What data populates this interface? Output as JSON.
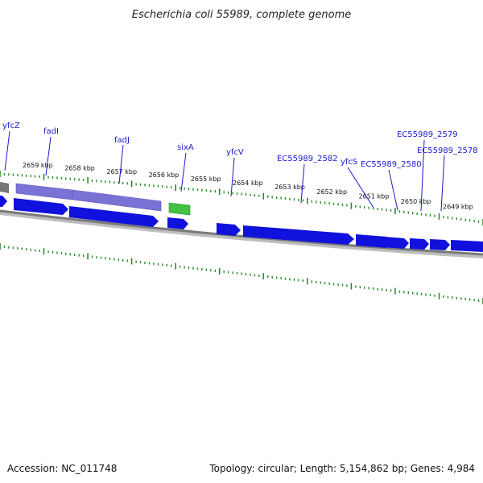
{
  "title": "Escherichia coli 55989, complete genome",
  "footer": {
    "accession": "Accession: NC_011748",
    "summary": "Topology: circular; Length: 5,154,862 bp; Genes: 4,984"
  },
  "colors": {
    "label": "#1a1acc",
    "leader": "#1a1acc",
    "tick": "#2a8a2a",
    "backbone": "#888888",
    "gene_forward_blue": "#1111dd",
    "gene_fad": "#7b72d6",
    "gene_sixA": "#44c044",
    "gene_grey": "#777777"
  },
  "scale": {
    "unit": "kbp",
    "labels": [
      {
        "pos": 2659,
        "text": "2659 kbp"
      },
      {
        "pos": 2658,
        "text": "2658 kbp"
      },
      {
        "pos": 2657,
        "text": "2657 kbp"
      },
      {
        "pos": 2656,
        "text": "2656 kbp"
      },
      {
        "pos": 2655,
        "text": "2655 kbp"
      },
      {
        "pos": 2654,
        "text": "2654 kbp"
      },
      {
        "pos": 2653,
        "text": "2653 kbp"
      },
      {
        "pos": 2652,
        "text": "2652 kbp"
      },
      {
        "pos": 2651,
        "text": "2651 kbp"
      },
      {
        "pos": 2650,
        "text": "2650 kbp"
      },
      {
        "pos": 2649,
        "text": "2649 kbp"
      }
    ]
  },
  "gene_labels": [
    {
      "text": "yfcZ"
    },
    {
      "text": "fadI"
    },
    {
      "text": "fadJ"
    },
    {
      "text": "sixA"
    },
    {
      "text": "yfcV"
    },
    {
      "text": "EC55989_2582"
    },
    {
      "text": "yfcS"
    },
    {
      "text": "EC55989_2580"
    },
    {
      "text": "EC55989_2579"
    },
    {
      "text": "EC55989_2578"
    }
  ]
}
